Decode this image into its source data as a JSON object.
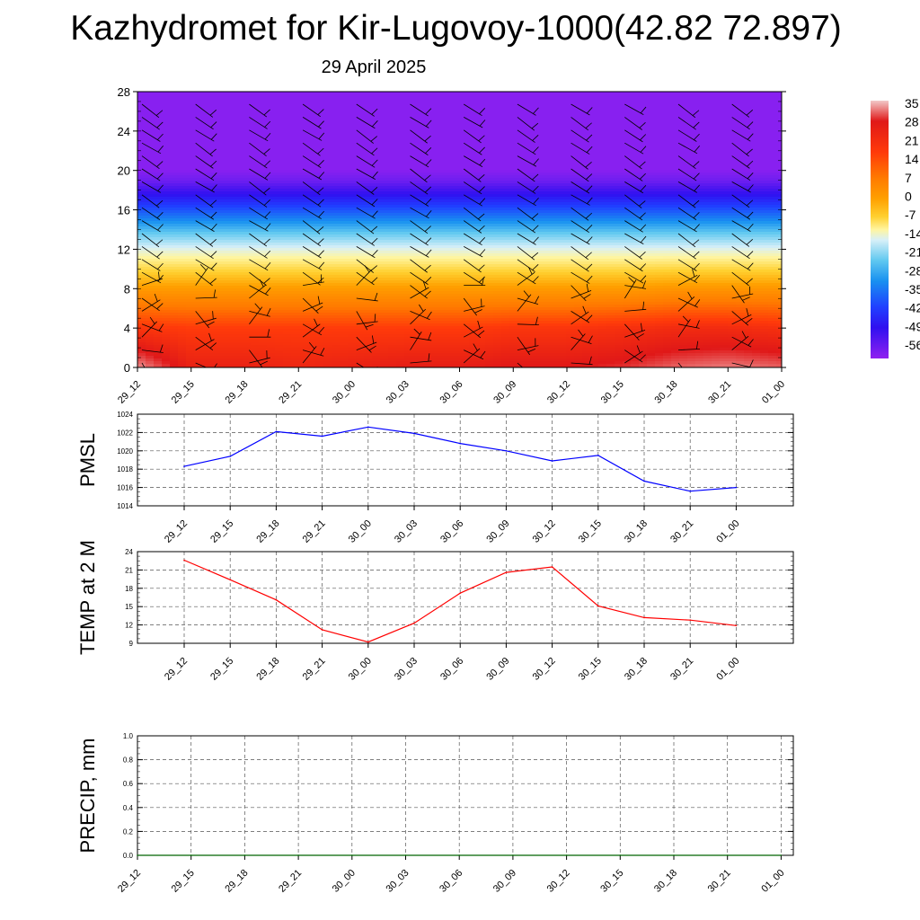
{
  "header": {
    "title": "Kazhydromet for Kir-Lugovoy-1000(42.82 72.897)",
    "subtitle": "29 April 2025"
  },
  "colors": {
    "pmsl_line": "#0000ff",
    "temp_line": "#ff0000",
    "precip_line": "#006400",
    "grid": "#555555"
  },
  "colorbar": {
    "labels": [
      "35",
      "28",
      "21",
      "14",
      "7",
      "0",
      "-7",
      "-14",
      "-21",
      "-28",
      "-35",
      "-42",
      "-49",
      "-56"
    ]
  },
  "chart_data": [
    {
      "type": "heatmap",
      "title": "",
      "ylim": [
        0,
        28
      ],
      "yticks": [
        0,
        4,
        8,
        12,
        16,
        20,
        24,
        28
      ],
      "x": [
        "29_12",
        "29_15",
        "29_18",
        "29_21",
        "30_00",
        "30_03",
        "30_06",
        "30_09",
        "30_12",
        "30_15",
        "30_18",
        "30_21",
        "01_00"
      ],
      "levels": [
        0,
        4,
        8,
        12,
        16,
        20,
        24,
        28
      ],
      "temperature": [
        [
          33,
          26,
          26,
          25,
          26,
          27,
          27,
          28,
          28,
          29,
          31,
          32,
          31
        ],
        [
          22,
          21,
          21,
          21,
          21,
          21,
          21,
          22,
          22,
          23,
          24,
          24,
          23
        ],
        [
          8,
          8,
          8,
          8,
          8,
          8,
          8,
          8,
          8,
          8,
          9,
          9,
          9
        ],
        [
          -11,
          -11,
          -11,
          -11,
          -11,
          -11,
          -11,
          -11,
          -11,
          -11,
          -11,
          -11,
          -11
        ],
        [
          -35,
          -35,
          -35,
          -35,
          -35,
          -35,
          -35,
          -35,
          -35,
          -35,
          -35,
          -35,
          -35
        ],
        [
          -58,
          -58,
          -58,
          -58,
          -58,
          -58,
          -58,
          -58,
          -58,
          -58,
          -58,
          -58,
          -58
        ],
        [
          -58,
          -58,
          -58,
          -58,
          -58,
          -58,
          -58,
          -58,
          -58,
          -58,
          -58,
          -58,
          -58
        ],
        [
          -58,
          -58,
          -58,
          -58,
          -58,
          -58,
          -58,
          -58,
          -58,
          -58,
          -58,
          -58,
          -58
        ]
      ]
    },
    {
      "type": "line",
      "ylabel": "PMSL",
      "ylim": [
        1014,
        1024
      ],
      "yticks": [
        1014,
        1016,
        1018,
        1020,
        1022,
        1024
      ],
      "categories": [
        "29_12",
        "29_15",
        "29_18",
        "29_21",
        "30_00",
        "30_03",
        "30_06",
        "30_09",
        "30_12",
        "30_15",
        "30_18",
        "30_21",
        "01_00"
      ],
      "values": [
        1018.3,
        1019.4,
        1022.1,
        1021.6,
        1022.6,
        1021.9,
        1020.8,
        1020.0,
        1018.9,
        1019.5,
        1016.7,
        1015.6,
        1016.0
      ],
      "grid": true
    },
    {
      "type": "line",
      "ylabel": "TEMP at 2 M",
      "ylim": [
        9,
        24
      ],
      "yticks": [
        9,
        12,
        15,
        18,
        21,
        24
      ],
      "categories": [
        "29_12",
        "29_15",
        "29_18",
        "29_21",
        "30_00",
        "30_03",
        "30_06",
        "30_09",
        "30_12",
        "30_15",
        "30_18",
        "30_21",
        "01_00"
      ],
      "values": [
        22.6,
        19.4,
        16.1,
        11.2,
        9.2,
        12.3,
        17.2,
        20.6,
        21.5,
        15.1,
        13.2,
        12.8,
        11.9
      ],
      "grid": true
    },
    {
      "type": "line",
      "ylabel": "PRECIP, mm",
      "ylim": [
        0,
        1.0
      ],
      "yticks": [
        "0.0",
        "0.2",
        "0.4",
        "0.6",
        "0.8",
        "1.0"
      ],
      "categories": [
        "29_12",
        "29_15",
        "29_18",
        "29_21",
        "30_00",
        "30_03",
        "30_06",
        "30_09",
        "30_12",
        "30_15",
        "30_18",
        "30_21",
        "01_00"
      ],
      "values": [
        0,
        0,
        0,
        0,
        0,
        0,
        0,
        0,
        0,
        0,
        0,
        0,
        0
      ],
      "grid": true
    }
  ]
}
